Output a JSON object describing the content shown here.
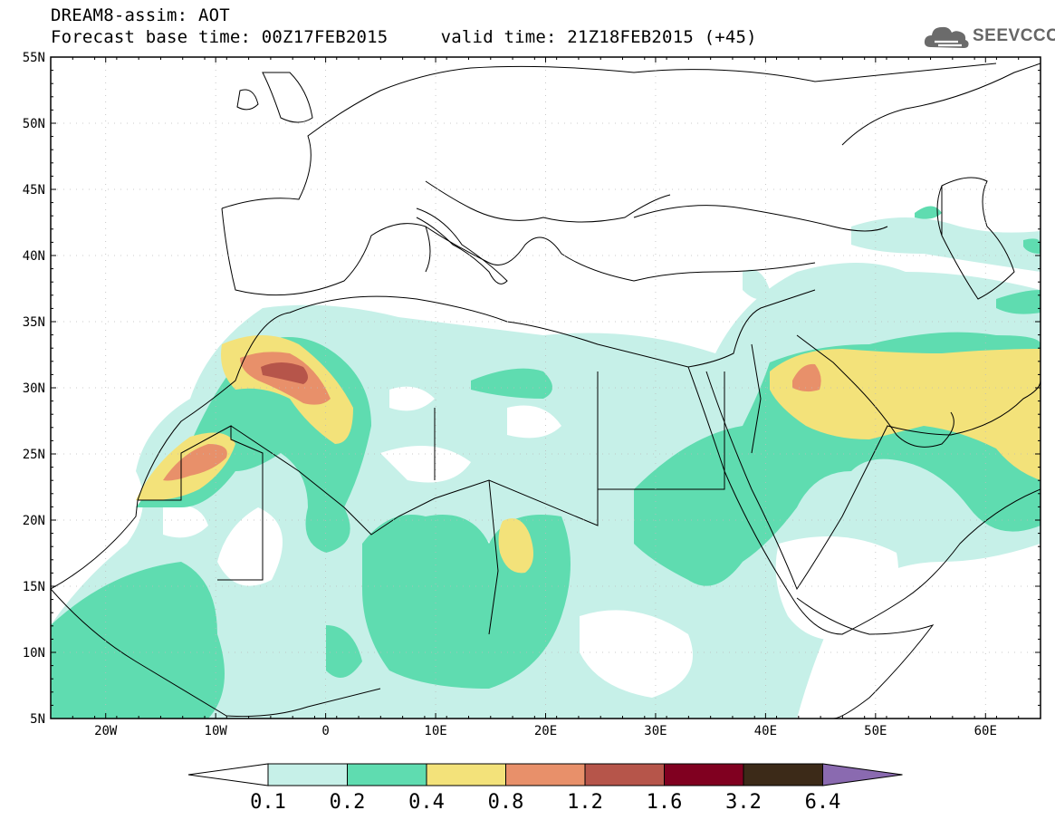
{
  "header": {
    "title_line1": "DREAM8-assim: AOT",
    "title_line2": "Forecast base time: 00Z17FEB2015     valid time: 21Z18FEB2015 (+45)"
  },
  "logo": {
    "text": "SEEVCCC",
    "icon": "cloud-icon"
  },
  "map": {
    "lon_ticks": [
      {
        "lon": -20,
        "label": "20W"
      },
      {
        "lon": -10,
        "label": "10W"
      },
      {
        "lon": 0,
        "label": "0"
      },
      {
        "lon": 10,
        "label": "10E"
      },
      {
        "lon": 20,
        "label": "20E"
      },
      {
        "lon": 30,
        "label": "30E"
      },
      {
        "lon": 40,
        "label": "40E"
      },
      {
        "lon": 50,
        "label": "50E"
      },
      {
        "lon": 60,
        "label": "60E"
      }
    ],
    "lat_ticks": [
      {
        "lat": 55,
        "label": "55N"
      },
      {
        "lat": 50,
        "label": "50N"
      },
      {
        "lat": 45,
        "label": "45N"
      },
      {
        "lat": 40,
        "label": "40N"
      },
      {
        "lat": 35,
        "label": "35N"
      },
      {
        "lat": 30,
        "label": "30N"
      },
      {
        "lat": 25,
        "label": "25N"
      },
      {
        "lat": 20,
        "label": "20N"
      },
      {
        "lat": 15,
        "label": "15N"
      },
      {
        "lat": 10,
        "label": "10N"
      },
      {
        "lat": 5,
        "label": "5N"
      }
    ],
    "extent": {
      "lon_min": -25,
      "lon_max": 65,
      "lat_min": 5,
      "lat_max": 55
    }
  },
  "colorbar": {
    "colors": [
      "#c6f0e8",
      "#5fdcb0",
      "#f3e27a",
      "#e8906a",
      "#b6554a",
      "#800020",
      "#3c2a18",
      "#8a6ab0"
    ],
    "labels": [
      "0.1",
      "0.2",
      "0.4",
      "0.8",
      "1.2",
      "1.6",
      "3.2",
      "6.4"
    ]
  }
}
